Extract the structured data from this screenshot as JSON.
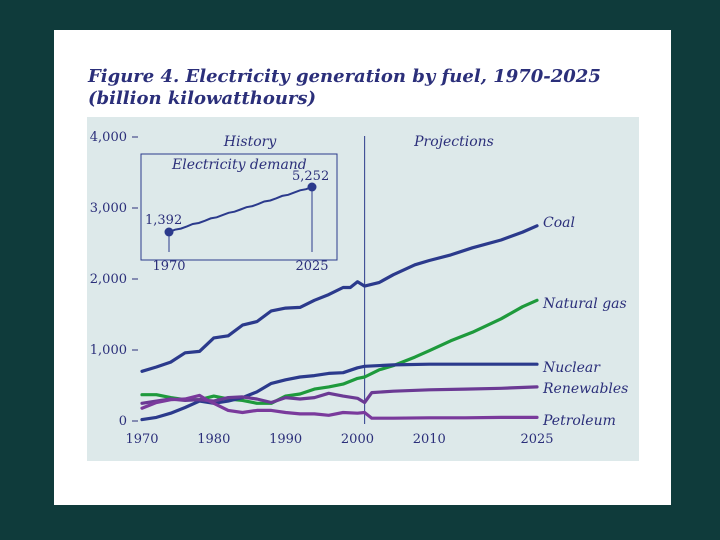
{
  "title_line1": "Figure 4. Electricity generation by fuel, 1970-2025",
  "title_line2": "(billion kilowatthours)",
  "colors": {
    "background": "#0f3b3b",
    "slide": "#ffffff",
    "plot": "#dde9ea",
    "text": "#2b2f7a",
    "coal": "#2b3a8c",
    "nuclear": "#2b3a8c",
    "natural_gas": "#1e9a3c",
    "renewables": "#6b3a94",
    "petroleum": "#7a3a9c"
  },
  "chart_data": {
    "type": "line",
    "title": "Figure 4. Electricity generation by fuel, 1970-2025",
    "subtitle": "(billion kilowatthours)",
    "xlabel": "",
    "ylabel": "",
    "xlim": [
      1970,
      2025
    ],
    "ylim": [
      0,
      4000
    ],
    "grid": false,
    "x_ticks": [
      {
        "value": 1970,
        "label": "1970"
      },
      {
        "value": 1980,
        "label": "1980"
      },
      {
        "value": 1990,
        "label": "1990"
      },
      {
        "value": 2000,
        "label": "2000"
      },
      {
        "value": 2010,
        "label": "2010"
      },
      {
        "value": 2025,
        "label": "2025"
      }
    ],
    "y_ticks": [
      {
        "value": 0,
        "label": "0"
      },
      {
        "value": 1000,
        "label": "1,000"
      },
      {
        "value": 2000,
        "label": "2,000"
      },
      {
        "value": 3000,
        "label": "3,000"
      },
      {
        "value": 4000,
        "label": "4,000"
      }
    ],
    "divider_year": 2001,
    "annotations": {
      "history": "History",
      "projections": "Projections"
    },
    "series": [
      {
        "name": "Coal",
        "color": "#2b3a8c",
        "x": [
          1970,
          1972,
          1974,
          1976,
          1978,
          1980,
          1982,
          1984,
          1986,
          1988,
          1990,
          1992,
          1994,
          1996,
          1998,
          1999,
          2000,
          2001,
          2003,
          2005,
          2008,
          2010,
          2013,
          2016,
          2020,
          2023,
          2025
        ],
        "values": [
          700,
          760,
          830,
          960,
          980,
          1170,
          1200,
          1350,
          1400,
          1550,
          1590,
          1600,
          1700,
          1780,
          1880,
          1880,
          1960,
          1900,
          1950,
          2060,
          2200,
          2260,
          2340,
          2440,
          2550,
          2660,
          2750
        ]
      },
      {
        "name": "Natural gas",
        "color": "#1e9a3c",
        "x": [
          1970,
          1972,
          1974,
          1976,
          1978,
          1980,
          1982,
          1984,
          1986,
          1988,
          1990,
          1992,
          1994,
          1996,
          1998,
          2000,
          2001,
          2003,
          2005,
          2008,
          2010,
          2013,
          2016,
          2020,
          2023,
          2025
        ],
        "values": [
          370,
          370,
          330,
          300,
          300,
          350,
          310,
          290,
          250,
          250,
          350,
          380,
          450,
          480,
          520,
          600,
          620,
          720,
          780,
          900,
          990,
          1130,
          1250,
          1440,
          1610,
          1700
        ]
      },
      {
        "name": "Nuclear",
        "color": "#2b3a8c",
        "x": [
          1970,
          1972,
          1974,
          1976,
          1978,
          1980,
          1982,
          1984,
          1986,
          1988,
          1990,
          1992,
          1994,
          1996,
          1998,
          2000,
          2001,
          2005,
          2010,
          2015,
          2020,
          2025
        ],
        "values": [
          20,
          50,
          110,
          190,
          280,
          250,
          280,
          330,
          410,
          530,
          580,
          620,
          640,
          670,
          680,
          750,
          770,
          790,
          800,
          800,
          800,
          800
        ]
      },
      {
        "name": "Renewables",
        "color": "#6b3a94",
        "x": [
          1970,
          1972,
          1974,
          1976,
          1978,
          1980,
          1982,
          1984,
          1986,
          1988,
          1990,
          1992,
          1994,
          1996,
          1998,
          2000,
          2001,
          2002,
          2005,
          2010,
          2015,
          2020,
          2025
        ],
        "values": [
          250,
          280,
          310,
          290,
          300,
          280,
          330,
          340,
          310,
          260,
          330,
          310,
          330,
          390,
          350,
          320,
          260,
          400,
          420,
          440,
          450,
          460,
          480
        ]
      },
      {
        "name": "Petroleum",
        "color": "#7a3a9c",
        "x": [
          1970,
          1972,
          1974,
          1976,
          1978,
          1979,
          1980,
          1982,
          1984,
          1986,
          1988,
          1990,
          1992,
          1994,
          1996,
          1998,
          2000,
          2001,
          2002,
          2005,
          2010,
          2015,
          2020,
          2025
        ],
        "values": [
          180,
          260,
          300,
          310,
          360,
          300,
          250,
          150,
          120,
          150,
          150,
          120,
          100,
          100,
          80,
          120,
          110,
          120,
          40,
          40,
          45,
          45,
          50,
          50
        ]
      }
    ],
    "inset": {
      "title": "Electricity demand",
      "type": "line",
      "x": [
        1970,
        2025
      ],
      "start": {
        "year": "1970",
        "value": 1392,
        "label": "1,392"
      },
      "end": {
        "year": "2025",
        "value": 5252,
        "label": "5,252"
      }
    }
  }
}
